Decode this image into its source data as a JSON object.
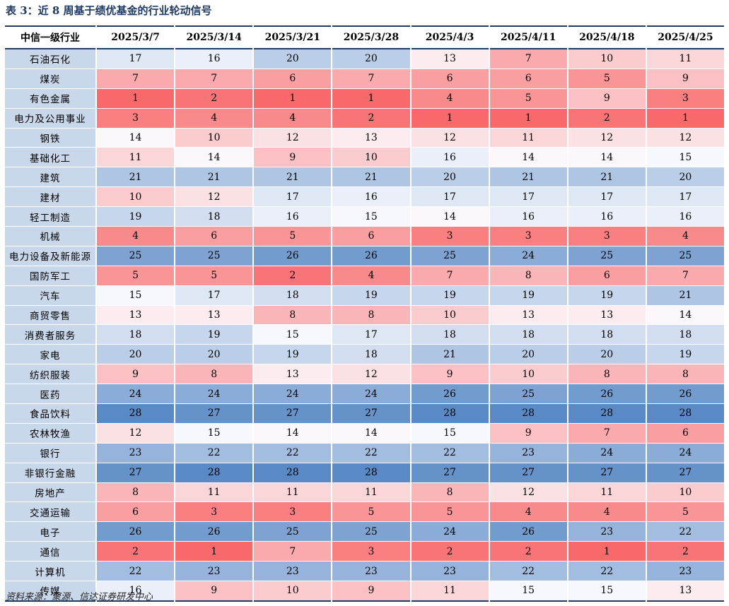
{
  "title": "表 3：近 8 周基于绩优基金的行业轮动信号",
  "source": "资料来源：聚源、信达证券研发中心",
  "colors": {
    "low_rank": "#f8696b",
    "mid_rank": "#fcfcff",
    "high_rank": "#5a8ac6",
    "header_rule": "#1f3a63",
    "industry_bg": "#c9d7ea"
  },
  "table": {
    "header": {
      "industry": "中信一级行业",
      "dates": [
        "2025/3/7",
        "2025/3/14",
        "2025/3/21",
        "2025/3/28",
        "2025/4/3",
        "2025/4/11",
        "2025/4/18",
        "2025/4/25"
      ]
    },
    "rows": [
      {
        "industry": "石油石化",
        "values": [
          17,
          16,
          20,
          20,
          13,
          7,
          10,
          11
        ]
      },
      {
        "industry": "煤炭",
        "values": [
          7,
          7,
          6,
          7,
          6,
          6,
          5,
          9
        ]
      },
      {
        "industry": "有色金属",
        "values": [
          1,
          2,
          1,
          1,
          4,
          5,
          9,
          3
        ]
      },
      {
        "industry": "电力及公用事业",
        "values": [
          3,
          4,
          4,
          2,
          1,
          1,
          2,
          1
        ]
      },
      {
        "industry": "钢铁",
        "values": [
          14,
          10,
          12,
          13,
          12,
          11,
          12,
          12
        ]
      },
      {
        "industry": "基础化工",
        "values": [
          11,
          14,
          9,
          10,
          16,
          14,
          14,
          15
        ]
      },
      {
        "industry": "建筑",
        "values": [
          21,
          21,
          21,
          21,
          20,
          21,
          21,
          20
        ]
      },
      {
        "industry": "建材",
        "values": [
          10,
          12,
          17,
          16,
          17,
          17,
          17,
          17
        ]
      },
      {
        "industry": "轻工制造",
        "values": [
          19,
          18,
          16,
          15,
          14,
          16,
          16,
          16
        ]
      },
      {
        "industry": "机械",
        "values": [
          4,
          6,
          5,
          6,
          3,
          3,
          3,
          4
        ]
      },
      {
        "industry": "电力设备及新能源",
        "values": [
          25,
          25,
          26,
          26,
          25,
          24,
          25,
          25
        ]
      },
      {
        "industry": "国防军工",
        "values": [
          5,
          5,
          2,
          4,
          7,
          8,
          6,
          7
        ]
      },
      {
        "industry": "汽车",
        "values": [
          15,
          17,
          18,
          19,
          19,
          19,
          19,
          21
        ]
      },
      {
        "industry": "商贸零售",
        "values": [
          13,
          13,
          8,
          8,
          10,
          13,
          13,
          14
        ]
      },
      {
        "industry": "消费者服务",
        "values": [
          18,
          19,
          15,
          17,
          18,
          18,
          18,
          18
        ]
      },
      {
        "industry": "家电",
        "values": [
          20,
          20,
          19,
          18,
          21,
          20,
          20,
          19
        ]
      },
      {
        "industry": "纺织服装",
        "values": [
          9,
          8,
          13,
          12,
          9,
          10,
          8,
          8
        ]
      },
      {
        "industry": "医药",
        "values": [
          24,
          24,
          24,
          24,
          26,
          25,
          26,
          26
        ]
      },
      {
        "industry": "食品饮料",
        "values": [
          28,
          27,
          27,
          27,
          28,
          28,
          28,
          28
        ]
      },
      {
        "industry": "农林牧渔",
        "values": [
          12,
          15,
          14,
          14,
          15,
          9,
          7,
          6
        ]
      },
      {
        "industry": "银行",
        "values": [
          23,
          22,
          22,
          22,
          22,
          23,
          24,
          24
        ]
      },
      {
        "industry": "非银行金融",
        "values": [
          27,
          28,
          28,
          28,
          27,
          27,
          27,
          27
        ]
      },
      {
        "industry": "房地产",
        "values": [
          8,
          11,
          11,
          11,
          8,
          12,
          11,
          10
        ]
      },
      {
        "industry": "交通运输",
        "values": [
          6,
          3,
          3,
          5,
          5,
          4,
          4,
          5
        ]
      },
      {
        "industry": "电子",
        "values": [
          26,
          26,
          25,
          25,
          24,
          26,
          23,
          22
        ]
      },
      {
        "industry": "通信",
        "values": [
          2,
          1,
          7,
          3,
          2,
          2,
          1,
          2
        ]
      },
      {
        "industry": "计算机",
        "values": [
          22,
          23,
          23,
          23,
          23,
          22,
          22,
          23
        ]
      },
      {
        "industry": "传媒",
        "values": [
          16,
          9,
          10,
          9,
          11,
          15,
          15,
          13
        ]
      }
    ]
  }
}
